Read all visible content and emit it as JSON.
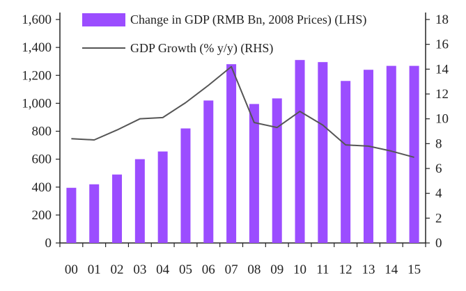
{
  "chart_data": {
    "type": "bar",
    "categories": [
      "00",
      "01",
      "02",
      "03",
      "04",
      "05",
      "06",
      "07",
      "08",
      "09",
      "10",
      "11",
      "12",
      "13",
      "14",
      "15"
    ],
    "series": [
      {
        "name": "Change in GDP (RMB Bn, 2008 Prices) (LHS)",
        "kind": "bar",
        "axis": "left",
        "values": [
          395,
          420,
          490,
          600,
          655,
          820,
          1020,
          1280,
          995,
          1035,
          1310,
          1295,
          1160,
          1240,
          1268,
          1268
        ],
        "color": "#9b4dff"
      },
      {
        "name": "GDP Growth (% y/y) (RHS)",
        "kind": "line",
        "axis": "right",
        "values": [
          8.4,
          8.3,
          9.1,
          10.0,
          10.1,
          11.3,
          12.7,
          14.2,
          9.7,
          9.3,
          10.6,
          9.5,
          7.9,
          7.8,
          7.4,
          6.9
        ],
        "color": "#555555"
      }
    ],
    "yleft": {
      "min": 0,
      "max": 1600,
      "ticks": [
        0,
        200,
        400,
        600,
        800,
        1000,
        1200,
        1400,
        1600
      ],
      "tick_labels": [
        "0",
        "200",
        "400",
        "600",
        "800",
        "1,000",
        "1,200",
        "1,400",
        "1,600"
      ]
    },
    "yright": {
      "min": 0,
      "max": 18,
      "ticks": [
        0,
        2,
        4,
        6,
        8,
        10,
        12,
        14,
        16,
        18
      ],
      "tick_labels": [
        "0",
        "2",
        "4",
        "6",
        "8",
        "10",
        "12",
        "14",
        "16",
        "18"
      ]
    },
    "legend_position": "top-left",
    "title": "",
    "xlabel": "",
    "ylabel": ""
  }
}
